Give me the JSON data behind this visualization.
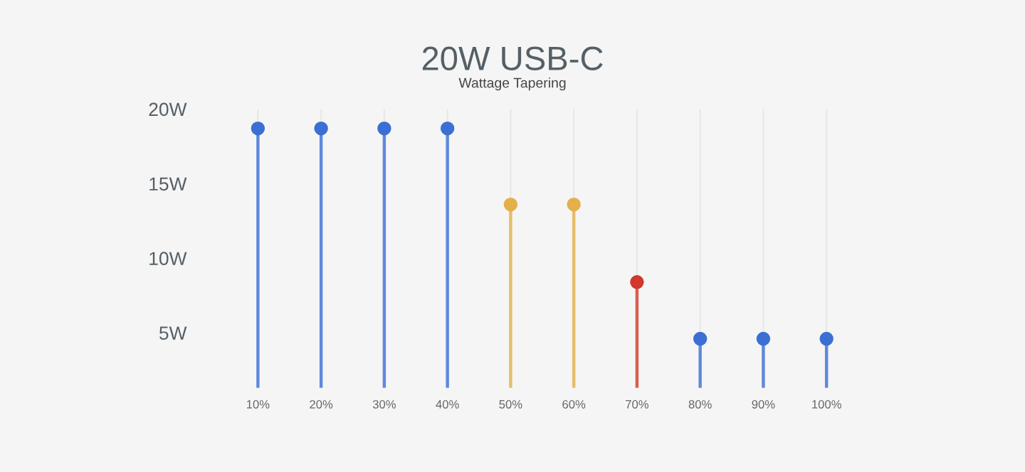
{
  "chart_data": {
    "type": "lollipop",
    "title": "20W USB-C",
    "subtitle": "Wattage Tapering",
    "categories": [
      "10%",
      "20%",
      "30%",
      "40%",
      "50%",
      "60%",
      "70%",
      "80%",
      "90%",
      "100%"
    ],
    "values": [
      18.7,
      18.7,
      18.7,
      18.7,
      13.6,
      13.6,
      8.4,
      4.6,
      4.6,
      4.6
    ],
    "colors": [
      "#3b6fd4",
      "#3b6fd4",
      "#3b6fd4",
      "#3b6fd4",
      "#e3b04b",
      "#e3b04b",
      "#d0392b",
      "#3b6fd4",
      "#3b6fd4",
      "#3b6fd4"
    ],
    "ylim": [
      1.3,
      20
    ],
    "yticks": [
      {
        "value": 5,
        "label": "5W"
      },
      {
        "value": 10,
        "label": "10W"
      },
      {
        "value": 15,
        "label": "15W"
      },
      {
        "value": 20,
        "label": "20W"
      }
    ],
    "grid": "x",
    "marker": "circle"
  }
}
